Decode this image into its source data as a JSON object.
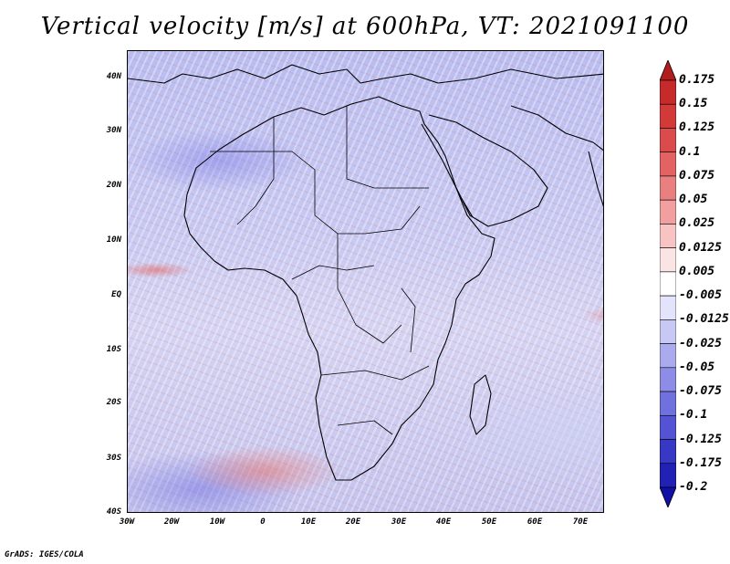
{
  "title": "Vertical velocity [m/s] at 600hPa, VT: 2021091100",
  "map": {
    "region": "Africa",
    "lat_labels": [
      "40N",
      "30N",
      "20N",
      "10N",
      "EQ",
      "10S",
      "20S",
      "30S",
      "40S"
    ],
    "lon_labels": [
      "30W",
      "20W",
      "10W",
      "0",
      "10E",
      "20E",
      "30E",
      "40E",
      "50E",
      "60E",
      "70E"
    ]
  },
  "colorbar": {
    "labels": [
      "0.175",
      "0.15",
      "0.125",
      "0.1",
      "0.075",
      "0.05",
      "0.025",
      "0.0125",
      "0.005",
      "-0.005",
      "-0.0125",
      "-0.025",
      "-0.05",
      "-0.075",
      "-0.1",
      "-0.125",
      "-0.175",
      "-0.2"
    ],
    "colors": [
      "#b11d1d",
      "#c62a2a",
      "#d23a3a",
      "#dc4b4b",
      "#e36262",
      "#ea7f7f",
      "#f19f9f",
      "#f7c3c3",
      "#fbe4e4",
      "#ffffff",
      "#e3e3fb",
      "#c8c8f5",
      "#aaaaef",
      "#8d8de7",
      "#7070de",
      "#5353d3",
      "#3838c6",
      "#2121b6",
      "#1010a4"
    ]
  },
  "footer": "GrADS: IGES/COLA"
}
